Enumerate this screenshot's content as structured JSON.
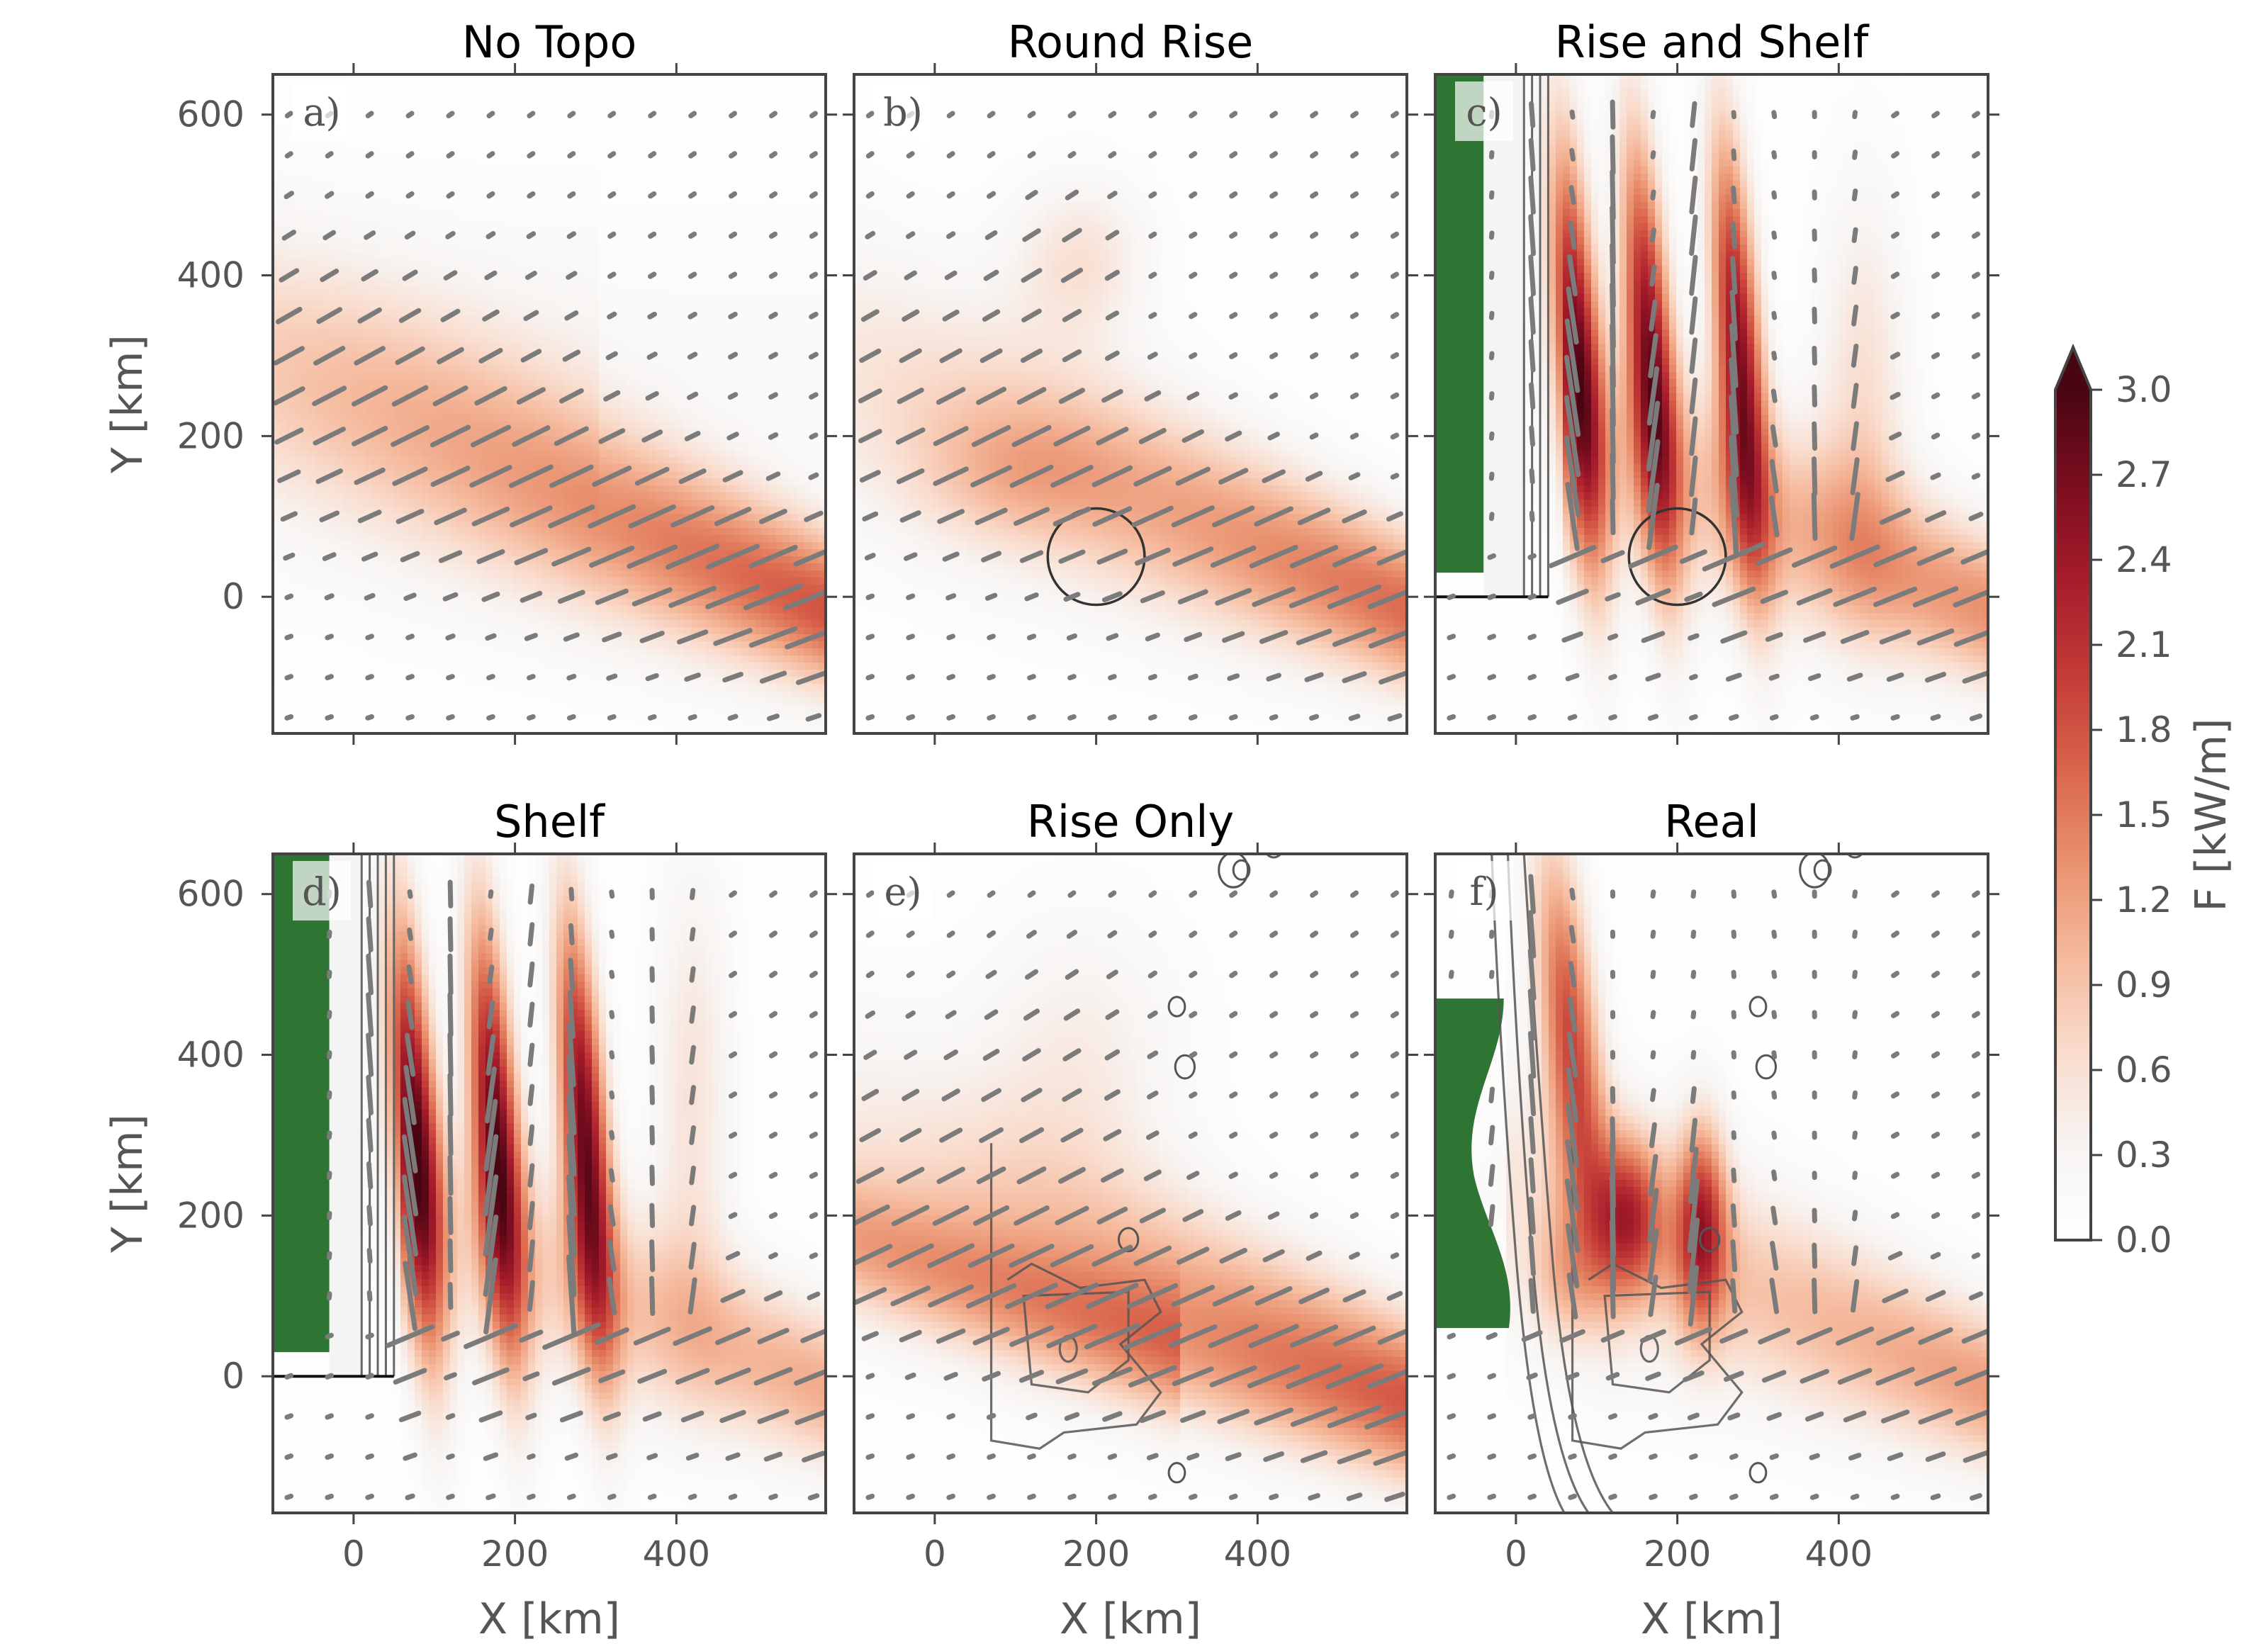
{
  "chart_data": {
    "type": "heatmap",
    "colorbar": {
      "label": "F [kW/m]",
      "ticks": [
        "0.0",
        "0.3",
        "0.6",
        "0.9",
        "1.2",
        "1.5",
        "1.8",
        "2.1",
        "2.4",
        "2.7",
        "3.0"
      ],
      "range": [
        0.0,
        3.0
      ],
      "extend": "max",
      "colormap": [
        "#ffffff",
        "#f7f4f2",
        "#f9dccd",
        "#f5b99c",
        "#e9916f",
        "#d9644c",
        "#c33a36",
        "#a61c2b",
        "#7a0d1f",
        "#4a0512"
      ]
    },
    "x_axis": {
      "label": "X [km]",
      "ticks": [
        "0",
        "200",
        "400"
      ],
      "tick_values": [
        0,
        200,
        400
      ],
      "range": [
        -100,
        585
      ]
    },
    "y_axis": {
      "label": "Y [km]",
      "ticks": [
        "0",
        "200",
        "400",
        "600"
      ],
      "tick_values": [
        0,
        200,
        400,
        600
      ],
      "range": [
        -170,
        650
      ]
    },
    "colors": {
      "land": "#2e7533",
      "arrows": "#7b7b7b",
      "contours": "#555555",
      "frame": "#444444",
      "text": "#555555"
    },
    "panels": [
      {
        "label": "a)",
        "title": "No Topo",
        "kind": "notopo",
        "features": {
          "land": false,
          "shelf": false,
          "rise": false,
          "real": false
        }
      },
      {
        "label": "b)",
        "title": "Round Rise",
        "kind": "round",
        "features": {
          "land": false,
          "shelf": false,
          "rise": true,
          "real": false
        },
        "rise": {
          "center_km": [
            200,
            50
          ],
          "radius_km": 60
        }
      },
      {
        "label": "c)",
        "title": "Rise and Shelf",
        "kind": "riseshelf",
        "features": {
          "land": true,
          "shelf": true,
          "rise": true,
          "real": false
        },
        "rise": {
          "center_km": [
            200,
            50
          ],
          "radius_km": 60
        },
        "shelf_contours_km": [
          10,
          20,
          30,
          40
        ],
        "land_x_max_km": -40,
        "land_y_min_km": 30
      },
      {
        "label": "d)",
        "title": "Shelf",
        "kind": "shelf",
        "features": {
          "land": true,
          "shelf": true,
          "rise": false,
          "real": false
        },
        "shelf_contours_km": [
          10,
          20,
          30,
          40,
          50
        ],
        "land_x_max_km": -30,
        "land_y_min_km": 30
      },
      {
        "label": "e)",
        "title": "Rise Only",
        "kind": "riseonly",
        "features": {
          "land": false,
          "shelf": false,
          "rise": true,
          "real": true
        }
      },
      {
        "label": "f)",
        "title": "Real",
        "kind": "real",
        "features": {
          "land": true,
          "shelf": true,
          "rise": true,
          "real": true
        }
      }
    ]
  }
}
